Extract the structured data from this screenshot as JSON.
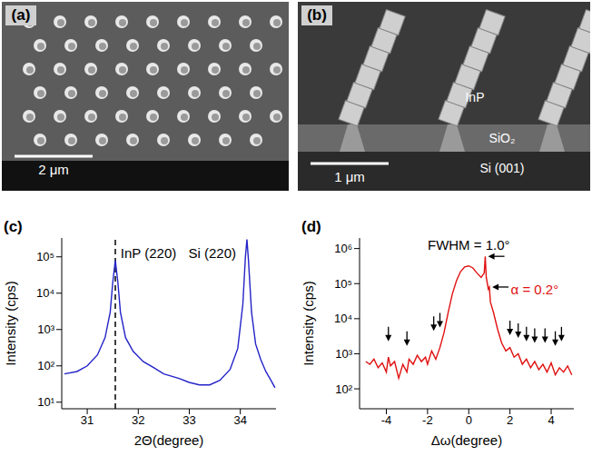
{
  "images": [
    {
      "label": "(a)",
      "scale_bar": "2 μm"
    },
    {
      "label": "(b)",
      "scale_bar": "1 μm",
      "annotations": [
        "InP",
        "SiO₂",
        "Si (001)"
      ]
    }
  ],
  "chart_data": [
    {
      "type": "line",
      "label": "(c)",
      "x_label": "2Θ(degree)",
      "y_label": "Intensity (cps)",
      "log": "y",
      "grid": false,
      "color": "#2323c8",
      "xlim": [
        30.5,
        34.7
      ],
      "xticks": [
        31,
        32,
        33,
        34
      ],
      "ylim": [
        6.6,
        330000
      ],
      "yticks": [
        {
          "value": 10,
          "label": "10¹"
        },
        {
          "value": 100,
          "label": "10²"
        },
        {
          "value": 1000,
          "label": "10³"
        },
        {
          "value": 10000,
          "label": "10⁴"
        },
        {
          "value": 100000,
          "label": "10⁵"
        }
      ],
      "x": [
        30.55,
        30.8,
        31.0,
        31.2,
        31.35,
        31.45,
        31.5,
        31.55,
        31.6,
        31.65,
        31.75,
        31.9,
        32.1,
        32.3,
        32.5,
        32.8,
        33.0,
        33.2,
        33.4,
        33.6,
        33.8,
        33.95,
        34.05,
        34.1,
        34.13,
        34.16,
        34.22,
        34.3,
        34.4,
        34.5,
        34.6,
        34.68
      ],
      "values": [
        60,
        70,
        100,
        200,
        600,
        3000,
        20000,
        80000,
        20000,
        3000,
        600,
        250,
        130,
        90,
        60,
        45,
        35,
        30,
        30,
        40,
        80,
        300,
        5000,
        100000,
        300000,
        80000,
        3000,
        400,
        150,
        70,
        40,
        25
      ],
      "reference_lines": [
        {
          "x": 31.55,
          "line_style": "dashed"
        }
      ],
      "annotations": [
        {
          "text": "InP (220)",
          "x": 32.2,
          "y": 130000,
          "color": "#000000"
        },
        {
          "text": "Si (220)",
          "x": 33.45,
          "y": 130000,
          "color": "#000000"
        }
      ]
    },
    {
      "type": "line",
      "label": "(d)",
      "x_label": "Δω(degree)",
      "y_label": "Intensity (cps)",
      "log": "y",
      "grid": false,
      "color": "#e01010",
      "xlim": [
        -5.3,
        5.1
      ],
      "xticks": [
        -4,
        -2,
        0,
        2,
        4
      ],
      "ylim": [
        27,
        2000000
      ],
      "yticks": [
        {
          "value": 100,
          "label": "10²"
        },
        {
          "value": 1000,
          "label": "10³"
        },
        {
          "value": 10000,
          "label": "10⁴"
        },
        {
          "value": 100000,
          "label": "10⁵"
        },
        {
          "value": 1000000,
          "label": "10⁶"
        }
      ],
      "x": [
        -5.0,
        -4.8,
        -4.6,
        -4.4,
        -4.2,
        -4.0,
        -3.9,
        -3.8,
        -3.6,
        -3.4,
        -3.2,
        -3.0,
        -2.9,
        -2.7,
        -2.5,
        -2.3,
        -2.1,
        -2.0,
        -1.8,
        -1.6,
        -1.4,
        -1.2,
        -1.0,
        -0.8,
        -0.6,
        -0.4,
        -0.2,
        0.0,
        0.2,
        0.4,
        0.6,
        0.75,
        0.8,
        0.85,
        0.95,
        1.0,
        1.05,
        1.2,
        1.4,
        1.6,
        1.8,
        2.0,
        2.2,
        2.4,
        2.6,
        2.8,
        3.0,
        3.2,
        3.4,
        3.6,
        3.8,
        4.0,
        4.2,
        4.4,
        4.6,
        4.8,
        5.0
      ],
      "values": [
        600,
        500,
        700,
        400,
        550,
        300,
        800,
        450,
        600,
        200,
        500,
        300,
        700,
        500,
        900,
        600,
        800,
        500,
        1200,
        700,
        1500,
        4000,
        15000,
        50000,
        120000,
        220000,
        300000,
        320000,
        280000,
        200000,
        150000,
        200000,
        600000,
        150000,
        70000,
        80000,
        30000,
        15000,
        5000,
        2000,
        1200,
        1500,
        800,
        1000,
        500,
        700,
        400,
        600,
        350,
        500,
        300,
        550,
        250,
        400,
        300,
        450,
        250
      ],
      "arrows": [
        {
          "x": -3.9,
          "y": 2000,
          "direction": "down"
        },
        {
          "x": -3.0,
          "y": 1500,
          "direction": "down"
        },
        {
          "x": -1.7,
          "y": 4000,
          "direction": "down"
        },
        {
          "x": -1.4,
          "y": 5000,
          "direction": "down"
        },
        {
          "x": 2.0,
          "y": 3000,
          "direction": "down"
        },
        {
          "x": 2.4,
          "y": 2500,
          "direction": "down"
        },
        {
          "x": 2.8,
          "y": 2000,
          "direction": "down"
        },
        {
          "x": 3.2,
          "y": 1800,
          "direction": "down"
        },
        {
          "x": 3.7,
          "y": 1800,
          "direction": "down"
        },
        {
          "x": 4.2,
          "y": 1500,
          "direction": "down"
        },
        {
          "x": 4.5,
          "y": 2000,
          "direction": "down"
        },
        {
          "x": 0.85,
          "y": 600000,
          "direction": "left"
        },
        {
          "x": 1.05,
          "y": 80000,
          "direction": "left"
        }
      ],
      "annotations": [
        {
          "text": "FWHM = 1.0°",
          "x": 0.0,
          "y": 1300000,
          "color": "#000000"
        },
        {
          "text": "α = 0.2°",
          "x": 3.2,
          "y": 70000,
          "color": "#e01010"
        }
      ]
    }
  ]
}
